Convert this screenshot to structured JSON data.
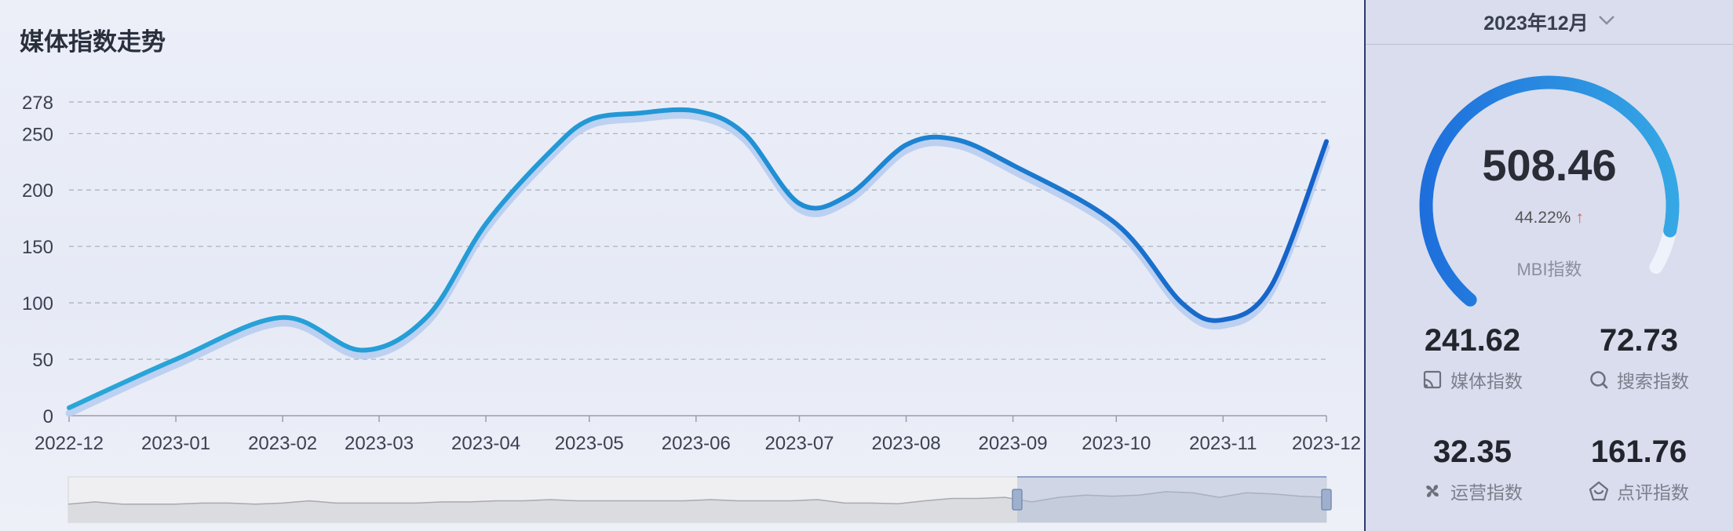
{
  "title": "媒体指数走势",
  "chart_data": {
    "type": "line",
    "title": "媒体指数走势",
    "x": [
      "2022-12",
      "2023-01",
      "2023-02",
      "2023-03",
      "2023-04",
      "2023-05",
      "2023-06",
      "2023-07",
      "2023-08",
      "2023-09",
      "2023-10",
      "2023-11",
      "2023-12"
    ],
    "y_ticks": [
      0,
      50,
      100,
      150,
      200,
      250,
      278
    ],
    "ylim": [
      0,
      278
    ],
    "grid": true,
    "points": [
      {
        "x": "2022-12-01",
        "y": 7
      },
      {
        "x": "2023-01-01",
        "y": 50
      },
      {
        "x": "2023-02-01",
        "y": 87
      },
      {
        "x": "2023-02-24",
        "y": 58
      },
      {
        "x": "2023-03-15",
        "y": 88
      },
      {
        "x": "2023-04-01",
        "y": 170
      },
      {
        "x": "2023-04-20",
        "y": 235
      },
      {
        "x": "2023-05-01",
        "y": 262
      },
      {
        "x": "2023-05-15",
        "y": 268
      },
      {
        "x": "2023-06-01",
        "y": 270
      },
      {
        "x": "2023-06-15",
        "y": 250
      },
      {
        "x": "2023-07-01",
        "y": 188
      },
      {
        "x": "2023-07-15",
        "y": 195
      },
      {
        "x": "2023-08-01",
        "y": 240
      },
      {
        "x": "2023-08-15",
        "y": 245
      },
      {
        "x": "2023-09-01",
        "y": 222
      },
      {
        "x": "2023-10-01",
        "y": 170
      },
      {
        "x": "2023-10-20",
        "y": 100
      },
      {
        "x": "2023-11-01",
        "y": 85
      },
      {
        "x": "2023-11-15",
        "y": 115
      },
      {
        "x": "2023-12-01",
        "y": 243
      }
    ],
    "overview": {
      "type": "area",
      "range_start": "2022-12",
      "range_end": "2023-12",
      "values": [
        8,
        9,
        8,
        8,
        8,
        8.5,
        8.5,
        8,
        8.5,
        9.5,
        8.5,
        8.5,
        8.5,
        8.5,
        9,
        9,
        9.5,
        9.5,
        10,
        9.5,
        9.5,
        9.5,
        9.5,
        9.5,
        10,
        9.5,
        9.5,
        9.5,
        10,
        8.5,
        8.5,
        8.2,
        9.5,
        10.5,
        10.5,
        11,
        9,
        11,
        12,
        11.5,
        12,
        13.5,
        13,
        11,
        13,
        12.5,
        11.5,
        11
      ]
    }
  },
  "side": {
    "month": "2023年12月",
    "gauge": {
      "value": "508.46",
      "change": "44.22%",
      "label": "MBI指数",
      "fill_fraction": 0.93
    },
    "metrics": [
      {
        "value": "241.62",
        "name": "媒体指数",
        "icon": "cast-icon"
      },
      {
        "value": "72.73",
        "name": "搜索指数",
        "icon": "search-icon"
      },
      {
        "value": "32.35",
        "name": "运营指数",
        "icon": "fan-icon"
      },
      {
        "value": "161.76",
        "name": "点评指数",
        "icon": "review-icon"
      }
    ]
  },
  "colors": {
    "line_start": "#2aa6d8",
    "line_end": "#1560c9",
    "shadow": "#b8cdef",
    "gauge_start": "#1e6fdc",
    "gauge_end": "#35a7e4",
    "gauge_track": "#eef2fa"
  }
}
